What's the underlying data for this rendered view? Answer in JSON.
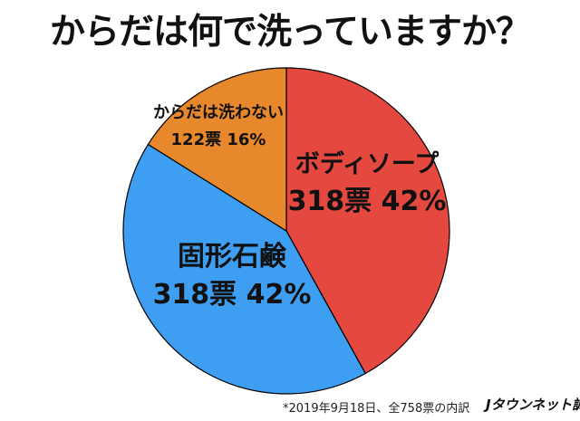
{
  "title": "からだは何で洗っていますか？",
  "footnote": "*2019年9月18日、全758票の内訳",
  "credit": "Jタウンネット調べ",
  "chart_data": {
    "type": "pie",
    "title": "からだは何で洗っていますか？",
    "slices": [
      {
        "label": "ボディソープ",
        "votes": 318,
        "votes_label": "318票",
        "percent": 42,
        "percent_label": "42%",
        "color": "#e5483f"
      },
      {
        "label": "固形石鹸",
        "votes": 318,
        "votes_label": "318票",
        "percent": 42,
        "percent_label": "42%",
        "color": "#3d9ef2"
      },
      {
        "label": "からだは洗わない",
        "votes": 122,
        "votes_label": "122票",
        "percent": 16,
        "percent_label": "16%",
        "color": "#e8882c"
      }
    ],
    "total_votes": 758
  }
}
